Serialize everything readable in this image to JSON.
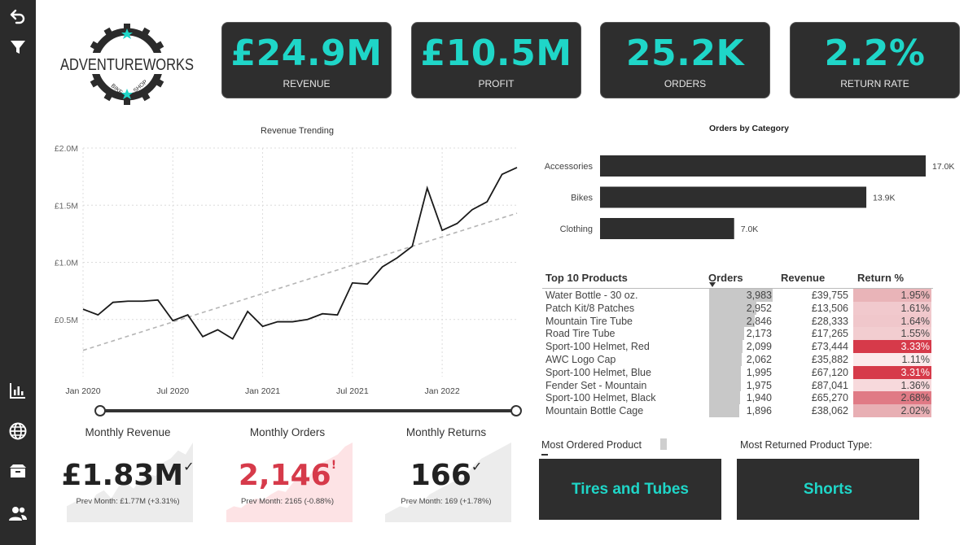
{
  "sidebar": {
    "icons": [
      "undo-icon",
      "filter-icon",
      "bar-chart-icon",
      "globe-icon",
      "box-icon",
      "users-icon"
    ]
  },
  "logo": {
    "brand": "ADVENTUREWORKS",
    "sub_left": "BIKE",
    "sub_right": "SHOP"
  },
  "kpis": [
    {
      "value": "£24.9M",
      "label": "REVENUE"
    },
    {
      "value": "£10.5M",
      "label": "PROFIT"
    },
    {
      "value": "25.2K",
      "label": "ORDERS"
    },
    {
      "value": "2.2%",
      "label": "RETURN RATE"
    }
  ],
  "colors": {
    "accent": "#1fd6c8",
    "dark": "#2e2e2e",
    "alert": "#d63a4a",
    "sidebar": "#2b2b2b"
  },
  "chart_data": [
    {
      "type": "line",
      "title": "Revenue Trending",
      "x_ticks": [
        "Jan 2020",
        "Jul 2020",
        "Jan 2021",
        "Jul 2021",
        "Jan 2022"
      ],
      "y_ticks": [
        "£0.5M",
        "£1.0M",
        "£1.5M",
        "£2.0M"
      ],
      "ylim": [
        0,
        2.0
      ],
      "series": [
        {
          "values": [
            0.59,
            0.54,
            0.65,
            0.66,
            0.66,
            0.67,
            0.49,
            0.54,
            0.35,
            0.41,
            0.33,
            0.57,
            0.44,
            0.48,
            0.48,
            0.5,
            0.55,
            0.54,
            0.82,
            0.81,
            0.96,
            1.04,
            1.14,
            1.65,
            1.28,
            1.34,
            1.46,
            1.53,
            1.77,
            1.83
          ]
        }
      ],
      "trendline": {
        "start": 0.23,
        "end": 1.43,
        "style": "dashed"
      },
      "grid": true
    },
    {
      "type": "bar",
      "orientation": "horizontal",
      "title": "Orders by Category",
      "categories": [
        "Accessories",
        "Bikes",
        "Clothing"
      ],
      "values": [
        17.0,
        13.9,
        7.0
      ],
      "value_labels": [
        "17.0K",
        "13.9K",
        "7.0K"
      ],
      "unit": "K"
    }
  ],
  "top_products": {
    "title": "Top 10 Products",
    "headers": {
      "orders": "Orders",
      "revenue": "Revenue",
      "return": "Return %"
    },
    "rows": [
      {
        "name": "Water Bottle - 30 oz.",
        "orders": "3,983",
        "orders_num": 3983,
        "revenue": "£39,755",
        "return": "1.95%",
        "return_num": 1.95
      },
      {
        "name": "Patch Kit/8 Patches",
        "orders": "2,952",
        "orders_num": 2952,
        "revenue": "£13,506",
        "return": "1.61%",
        "return_num": 1.61
      },
      {
        "name": "Mountain Tire Tube",
        "orders": "2,846",
        "orders_num": 2846,
        "revenue": "£28,333",
        "return": "1.64%",
        "return_num": 1.64
      },
      {
        "name": "Road Tire Tube",
        "orders": "2,173",
        "orders_num": 2173,
        "revenue": "£17,265",
        "return": "1.55%",
        "return_num": 1.55
      },
      {
        "name": "Sport-100 Helmet, Red",
        "orders": "2,099",
        "orders_num": 2099,
        "revenue": "£73,444",
        "return": "3.33%",
        "return_num": 3.33
      },
      {
        "name": "AWC Logo Cap",
        "orders": "2,062",
        "orders_num": 2062,
        "revenue": "£35,882",
        "return": "1.11%",
        "return_num": 1.11
      },
      {
        "name": "Sport-100 Helmet, Blue",
        "orders": "1,995",
        "orders_num": 1995,
        "revenue": "£67,120",
        "return": "3.31%",
        "return_num": 3.31
      },
      {
        "name": "Fender Set - Mountain",
        "orders": "1,975",
        "orders_num": 1975,
        "revenue": "£87,041",
        "return": "1.36%",
        "return_num": 1.36
      },
      {
        "name": "Sport-100 Helmet, Black",
        "orders": "1,940",
        "orders_num": 1940,
        "revenue": "£65,270",
        "return": "2.68%",
        "return_num": 2.68
      },
      {
        "name": "Mountain Bottle Cage",
        "orders": "1,896",
        "orders_num": 1896,
        "revenue": "£38,062",
        "return": "2.02%",
        "return_num": 2.02
      }
    ]
  },
  "monthly": [
    {
      "title": "Monthly Revenue",
      "value": "£1.83M",
      "mark": "✓",
      "prev": "Prev Month: £1.77M (+3.31%)",
      "color": "#222222",
      "spark": [
        0.2,
        0.25,
        0.3,
        0.22,
        0.35,
        0.4,
        0.3,
        0.45,
        0.5,
        0.42,
        0.55,
        0.6,
        0.58,
        0.75,
        0.8,
        0.9,
        0.85,
        1.0
      ]
    },
    {
      "title": "Monthly Orders",
      "value": "2,146",
      "mark": "!",
      "prev": "Prev Month: 2165 (-0.88%)",
      "color": "#d63a4a",
      "spark": [
        0.15,
        0.2,
        0.18,
        0.25,
        0.3,
        0.28,
        0.35,
        0.4,
        0.38,
        0.5,
        0.6,
        0.55,
        0.7,
        0.75,
        0.8,
        0.85,
        0.95,
        1.0
      ]
    },
    {
      "title": "Monthly Returns",
      "value": "166",
      "mark": "✓",
      "prev": "Prev Month: 169 (+1.78%)",
      "color": "#222222",
      "spark": [
        0.1,
        0.15,
        0.2,
        0.18,
        0.3,
        0.25,
        0.35,
        0.4,
        0.45,
        0.5,
        0.55,
        0.6,
        0.72,
        0.8,
        0.85,
        0.9,
        0.95,
        1.0
      ]
    }
  ],
  "most_ordered": {
    "label": "Most Ordered Product",
    "value": "Tires and Tubes"
  },
  "most_returned": {
    "label": "Most Returned Product Type:",
    "value": "Shorts"
  }
}
